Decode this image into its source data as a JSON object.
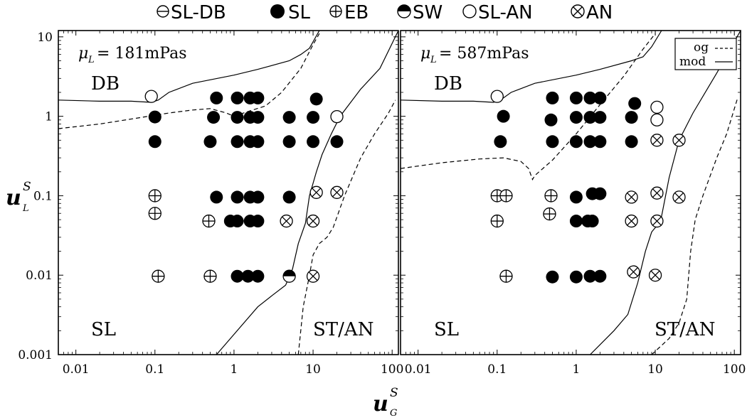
{
  "legend": {
    "entries": [
      {
        "symbol": "sl-db",
        "label": "SL-DB"
      },
      {
        "symbol": "sl",
        "label": "SL"
      },
      {
        "symbol": "eb",
        "label": "EB"
      },
      {
        "symbol": "sw",
        "label": "SW"
      },
      {
        "symbol": "sl-an",
        "label": "SL-AN"
      },
      {
        "symbol": "an",
        "label": "AN"
      }
    ]
  },
  "axes": {
    "xlabel_main": "u",
    "xlabel_sup": "S",
    "xlabel_sub": "G",
    "ylabel_main": "u",
    "ylabel_sup": "S",
    "ylabel_sub": "L"
  },
  "line_legend": {
    "og": "og",
    "mod": "mod"
  },
  "chart_data": [
    {
      "type": "scatter",
      "xscale": "log",
      "yscale": "log",
      "xlim": [
        0.006,
        120
      ],
      "ylim": [
        0.001,
        12
      ],
      "xticks": [
        "0.01",
        "0.1",
        "1",
        "10",
        "100"
      ],
      "yticks": [
        "0.001",
        "0.01",
        "0.1",
        "1",
        "10"
      ],
      "annotation_mu": "μ",
      "annotation_sub": "L",
      "annotation_value": "= 181mPas",
      "regions": [
        "DB",
        "SL",
        "ST/AN"
      ],
      "points": [
        {
          "x": 0.09,
          "y": 1.78,
          "type": "sl-db"
        },
        {
          "x": 0.1,
          "y": 0.98,
          "type": "sl"
        },
        {
          "x": 0.1,
          "y": 0.48,
          "type": "sl"
        },
        {
          "x": 0.6,
          "y": 1.7,
          "type": "sl"
        },
        {
          "x": 1.1,
          "y": 1.7,
          "type": "sl"
        },
        {
          "x": 1.6,
          "y": 1.7,
          "type": "sl"
        },
        {
          "x": 2.0,
          "y": 1.7,
          "type": "sl"
        },
        {
          "x": 0.55,
          "y": 0.97,
          "type": "sl"
        },
        {
          "x": 1.1,
          "y": 0.97,
          "type": "sl"
        },
        {
          "x": 1.6,
          "y": 0.97,
          "type": "sl"
        },
        {
          "x": 2.0,
          "y": 0.97,
          "type": "sl"
        },
        {
          "x": 5.0,
          "y": 0.97,
          "type": "sl"
        },
        {
          "x": 10,
          "y": 0.97,
          "type": "sl"
        },
        {
          "x": 11,
          "y": 1.65,
          "type": "sl"
        },
        {
          "x": 20,
          "y": 0.99,
          "type": "sl-an"
        },
        {
          "x": 0.5,
          "y": 0.48,
          "type": "sl"
        },
        {
          "x": 1.1,
          "y": 0.48,
          "type": "sl"
        },
        {
          "x": 1.6,
          "y": 0.48,
          "type": "sl"
        },
        {
          "x": 2.0,
          "y": 0.48,
          "type": "sl"
        },
        {
          "x": 5.0,
          "y": 0.48,
          "type": "sl"
        },
        {
          "x": 10,
          "y": 0.48,
          "type": "sl"
        },
        {
          "x": 20,
          "y": 0.48,
          "type": "sl"
        },
        {
          "x": 0.1,
          "y": 0.1,
          "type": "eb"
        },
        {
          "x": 0.1,
          "y": 0.06,
          "type": "eb"
        },
        {
          "x": 0.11,
          "y": 0.0097,
          "type": "eb"
        },
        {
          "x": 0.48,
          "y": 0.048,
          "type": "eb"
        },
        {
          "x": 0.5,
          "y": 0.0097,
          "type": "eb"
        },
        {
          "x": 0.6,
          "y": 0.096,
          "type": "sl"
        },
        {
          "x": 1.1,
          "y": 0.096,
          "type": "sl"
        },
        {
          "x": 1.6,
          "y": 0.096,
          "type": "sl"
        },
        {
          "x": 2.0,
          "y": 0.096,
          "type": "sl"
        },
        {
          "x": 5.0,
          "y": 0.096,
          "type": "sl"
        },
        {
          "x": 11,
          "y": 0.11,
          "type": "an"
        },
        {
          "x": 20,
          "y": 0.11,
          "type": "an"
        },
        {
          "x": 0.9,
          "y": 0.048,
          "type": "sl"
        },
        {
          "x": 1.1,
          "y": 0.048,
          "type": "sl"
        },
        {
          "x": 1.6,
          "y": 0.048,
          "type": "sl"
        },
        {
          "x": 2.0,
          "y": 0.048,
          "type": "sl"
        },
        {
          "x": 4.6,
          "y": 0.048,
          "type": "an"
        },
        {
          "x": 10,
          "y": 0.048,
          "type": "an"
        },
        {
          "x": 1.1,
          "y": 0.0097,
          "type": "sl"
        },
        {
          "x": 1.5,
          "y": 0.0097,
          "type": "sl"
        },
        {
          "x": 2.0,
          "y": 0.0097,
          "type": "sl"
        },
        {
          "x": 5.0,
          "y": 0.0097,
          "type": "sw"
        },
        {
          "x": 10,
          "y": 0.0097,
          "type": "an"
        }
      ],
      "curves": [
        {
          "style": "solid",
          "points": [
            [
              0.006,
              1.6
            ],
            [
              0.02,
              1.55
            ],
            [
              0.05,
              1.55
            ],
            [
              0.09,
              1.5
            ],
            [
              0.11,
              1.6
            ],
            [
              0.15,
              2.0
            ],
            [
              0.3,
              2.6
            ],
            [
              1,
              3.3
            ],
            [
              2,
              3.9
            ],
            [
              5,
              5.0
            ],
            [
              7,
              6.0
            ],
            [
              9,
              7.2
            ],
            [
              12,
              12
            ]
          ]
        },
        {
          "style": "dashed",
          "points": [
            [
              0.006,
              0.7
            ],
            [
              0.02,
              0.8
            ],
            [
              0.06,
              0.95
            ],
            [
              0.15,
              1.1
            ],
            [
              0.3,
              1.2
            ],
            [
              0.5,
              1.25
            ],
            [
              0.8,
              1.1
            ],
            [
              1,
              1.0
            ],
            [
              1.5,
              1.15
            ],
            [
              2.5,
              1.35
            ],
            [
              4,
              2.0
            ],
            [
              7,
              4
            ],
            [
              10,
              8
            ],
            [
              12,
              11
            ]
          ]
        },
        {
          "style": "solid",
          "points": [
            [
              0.6,
              0.001
            ],
            [
              1,
              0.0018
            ],
            [
              2,
              0.004
            ],
            [
              3,
              0.0055
            ],
            [
              4.5,
              0.0075
            ],
            [
              5.5,
              0.012
            ],
            [
              6.5,
              0.025
            ],
            [
              8,
              0.045
            ],
            [
              9,
              0.1
            ],
            [
              11,
              0.2
            ],
            [
              13,
              0.33
            ],
            [
              17,
              0.6
            ],
            [
              22,
              1.0
            ],
            [
              40,
              2.2
            ],
            [
              70,
              4
            ],
            [
              120,
              12
            ]
          ]
        },
        {
          "style": "dashed",
          "points": [
            [
              6.5,
              0.001
            ],
            [
              7.5,
              0.004
            ],
            [
              9,
              0.01
            ],
            [
              10,
              0.018
            ],
            [
              12,
              0.025
            ],
            [
              15,
              0.03
            ],
            [
              18,
              0.04
            ],
            [
              25,
              0.1
            ],
            [
              40,
              0.3
            ],
            [
              60,
              0.6
            ],
            [
              90,
              1.1
            ],
            [
              110,
              1.6
            ]
          ]
        }
      ]
    },
    {
      "type": "scatter",
      "xscale": "log",
      "yscale": "log",
      "xlim": [
        0.006,
        120
      ],
      "ylim": [
        0.001,
        12
      ],
      "xticks": [
        "0.01",
        "0.1",
        "1",
        "10",
        "100"
      ],
      "yticks": [],
      "annotation_mu": "μ",
      "annotation_sub": "L",
      "annotation_value": "= 587mPas",
      "regions": [
        "DB",
        "SL",
        "ST/AN"
      ],
      "points": [
        {
          "x": 0.1,
          "y": 1.78,
          "type": "sl-db"
        },
        {
          "x": 0.12,
          "y": 1.0,
          "type": "sl"
        },
        {
          "x": 0.11,
          "y": 0.48,
          "type": "sl"
        },
        {
          "x": 0.5,
          "y": 1.7,
          "type": "sl"
        },
        {
          "x": 1.0,
          "y": 1.7,
          "type": "sl"
        },
        {
          "x": 1.5,
          "y": 1.7,
          "type": "sl"
        },
        {
          "x": 2.0,
          "y": 1.7,
          "type": "sl"
        },
        {
          "x": 5.5,
          "y": 1.45,
          "type": "sl"
        },
        {
          "x": 10.5,
          "y": 1.3,
          "type": "sl-an"
        },
        {
          "x": 0.48,
          "y": 0.9,
          "type": "sl"
        },
        {
          "x": 1.0,
          "y": 0.97,
          "type": "sl"
        },
        {
          "x": 1.5,
          "y": 0.97,
          "type": "sl"
        },
        {
          "x": 2.0,
          "y": 0.97,
          "type": "sl"
        },
        {
          "x": 5.0,
          "y": 0.97,
          "type": "sl"
        },
        {
          "x": 10.5,
          "y": 0.9,
          "type": "sl-an"
        },
        {
          "x": 0.5,
          "y": 0.48,
          "type": "sl"
        },
        {
          "x": 1.0,
          "y": 0.48,
          "type": "sl"
        },
        {
          "x": 1.5,
          "y": 0.48,
          "type": "sl"
        },
        {
          "x": 2.0,
          "y": 0.48,
          "type": "sl"
        },
        {
          "x": 5.0,
          "y": 0.48,
          "type": "sl"
        },
        {
          "x": 10.5,
          "y": 0.5,
          "type": "an"
        },
        {
          "x": 20,
          "y": 0.5,
          "type": "an"
        },
        {
          "x": 0.1,
          "y": 0.1,
          "type": "eb"
        },
        {
          "x": 0.13,
          "y": 0.1,
          "type": "eb"
        },
        {
          "x": 0.48,
          "y": 0.1,
          "type": "eb"
        },
        {
          "x": 0.1,
          "y": 0.048,
          "type": "eb"
        },
        {
          "x": 0.46,
          "y": 0.059,
          "type": "eb"
        },
        {
          "x": 0.13,
          "y": 0.0097,
          "type": "eb"
        },
        {
          "x": 1.0,
          "y": 0.096,
          "type": "sl"
        },
        {
          "x": 1.6,
          "y": 0.106,
          "type": "sl"
        },
        {
          "x": 2.0,
          "y": 0.106,
          "type": "sl"
        },
        {
          "x": 5.0,
          "y": 0.096,
          "type": "an"
        },
        {
          "x": 10.5,
          "y": 0.108,
          "type": "an"
        },
        {
          "x": 20,
          "y": 0.096,
          "type": "an"
        },
        {
          "x": 1.0,
          "y": 0.048,
          "type": "sl"
        },
        {
          "x": 1.4,
          "y": 0.048,
          "type": "sl"
        },
        {
          "x": 1.6,
          "y": 0.048,
          "type": "sl"
        },
        {
          "x": 5.0,
          "y": 0.048,
          "type": "an"
        },
        {
          "x": 10.5,
          "y": 0.048,
          "type": "an"
        },
        {
          "x": 0.5,
          "y": 0.0095,
          "type": "sl"
        },
        {
          "x": 1.0,
          "y": 0.0095,
          "type": "sl"
        },
        {
          "x": 1.5,
          "y": 0.0097,
          "type": "sl"
        },
        {
          "x": 2.0,
          "y": 0.0097,
          "type": "sl"
        },
        {
          "x": 5.3,
          "y": 0.011,
          "type": "an"
        },
        {
          "x": 10,
          "y": 0.01,
          "type": "an"
        }
      ],
      "curves": [
        {
          "style": "solid",
          "points": [
            [
              0.006,
              1.6
            ],
            [
              0.02,
              1.55
            ],
            [
              0.05,
              1.55
            ],
            [
              0.09,
              1.5
            ],
            [
              0.11,
              1.6
            ],
            [
              0.15,
              2.0
            ],
            [
              0.3,
              2.6
            ],
            [
              1,
              3.3
            ],
            [
              2,
              3.9
            ],
            [
              5,
              5.0
            ],
            [
              7,
              5.6
            ],
            [
              9,
              7.5
            ],
            [
              12,
              12
            ]
          ]
        },
        {
          "style": "dashed",
          "points": [
            [
              0.006,
              0.22
            ],
            [
              0.02,
              0.26
            ],
            [
              0.06,
              0.29
            ],
            [
              0.12,
              0.3
            ],
            [
              0.2,
              0.27
            ],
            [
              0.25,
              0.22
            ],
            [
              0.28,
              0.16
            ],
            [
              0.3,
              0.18
            ],
            [
              0.5,
              0.28
            ],
            [
              1,
              0.6
            ],
            [
              2,
              1.4
            ],
            [
              4,
              3.2
            ],
            [
              7,
              7
            ],
            [
              10,
              11
            ]
          ]
        },
        {
          "style": "solid",
          "points": [
            [
              1.5,
              0.001
            ],
            [
              3,
              0.002
            ],
            [
              4.5,
              0.0032
            ],
            [
              6,
              0.008
            ],
            [
              7.5,
              0.02
            ],
            [
              9,
              0.035
            ],
            [
              10.5,
              0.042
            ],
            [
              12,
              0.055
            ],
            [
              15,
              0.17
            ],
            [
              20,
              0.5
            ],
            [
              30,
              1.1
            ],
            [
              60,
              3.5
            ],
            [
              120,
              12
            ]
          ]
        },
        {
          "style": "dashed",
          "points": [
            [
              9,
              0.001
            ],
            [
              15,
              0.0016
            ],
            [
              20,
              0.0025
            ],
            [
              25,
              0.005
            ],
            [
              28,
              0.02
            ],
            [
              32,
              0.05
            ],
            [
              40,
              0.1
            ],
            [
              60,
              0.3
            ],
            [
              80,
              0.6
            ],
            [
              110,
              1.7
            ]
          ]
        }
      ]
    }
  ]
}
